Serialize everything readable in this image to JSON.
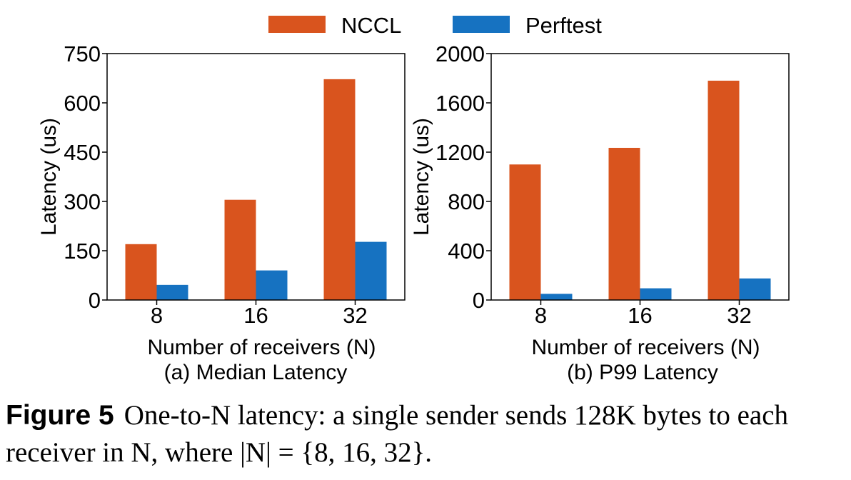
{
  "legend": [
    {
      "name": "NCCL",
      "color": "#d9541e"
    },
    {
      "name": "Perftest",
      "color": "#1672c1"
    }
  ],
  "chart_data": [
    {
      "type": "bar",
      "subtitle": "(a) Median Latency",
      "xlabel": "Number of receivers (N)",
      "ylabel": "Latency (us)",
      "categories": [
        "8",
        "16",
        "32"
      ],
      "ylim": [
        0,
        750
      ],
      "yticks": [
        0,
        150,
        300,
        450,
        600,
        750
      ],
      "series": [
        {
          "name": "NCCL",
          "color": "#d9541e",
          "values": [
            170,
            305,
            672
          ]
        },
        {
          "name": "Perftest",
          "color": "#1672c1",
          "values": [
            46,
            90,
            177
          ]
        }
      ]
    },
    {
      "type": "bar",
      "subtitle": "(b) P99 Latency",
      "xlabel": "Number of receivers (N)",
      "ylabel": "Latency (us)",
      "categories": [
        "8",
        "16",
        "32"
      ],
      "ylim": [
        0,
        2000
      ],
      "yticks": [
        0,
        400,
        800,
        1200,
        1600,
        2000
      ],
      "series": [
        {
          "name": "NCCL",
          "color": "#d9541e",
          "values": [
            1100,
            1235,
            1780
          ]
        },
        {
          "name": "Perftest",
          "color": "#1672c1",
          "values": [
            50,
            95,
            175
          ]
        }
      ]
    }
  ],
  "caption": {
    "label": "Figure 5",
    "text": "One-to-N latency: a single sender sends 128K bytes to each receiver in N, where |N| = {8, 16, 32}."
  }
}
